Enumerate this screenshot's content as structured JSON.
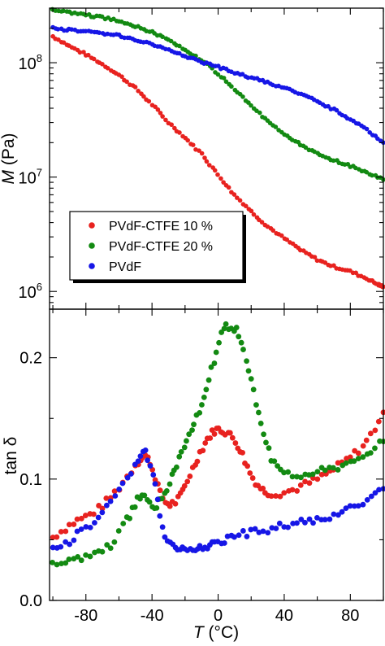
{
  "chart_data": [
    {
      "type": "scatter",
      "panel": "top",
      "ylabel": {
        "symbol": "M",
        "unit": " (Pa)"
      },
      "yscale": "log",
      "ylim": [
        700000,
        300000000
      ],
      "xlim": [
        -102,
        100
      ],
      "y_ticks": [
        {
          "value": 1000000,
          "base": "10",
          "exp": "6"
        },
        {
          "value": 10000000,
          "base": "10",
          "exp": "7"
        },
        {
          "value": 100000000,
          "base": "10",
          "exp": "8"
        }
      ],
      "legend": {
        "placement": "lower-left",
        "entries": [
          "PVdF-CTFE 10 %",
          "PVdF-CTFE 20 %",
          "PVdF"
        ]
      },
      "series": [
        {
          "name": "PVdF-CTFE 10 %",
          "color": "#e8221f",
          "x": [
            -100,
            -90,
            -80,
            -70,
            -60,
            -50,
            -40,
            -30,
            -20,
            -10,
            0,
            10,
            20,
            30,
            40,
            50,
            60,
            70,
            80,
            90,
            97,
            100
          ],
          "y": [
            170000000,
            140000000,
            118000000,
            97000000,
            78000000,
            60000000,
            43000000,
            30000000,
            22000000,
            16000000,
            10500000,
            7000000,
            5000000,
            3700000,
            2900000,
            2300000,
            1900000,
            1650000,
            1500000,
            1300000,
            1150000,
            1100000
          ]
        },
        {
          "name": "PVdF-CTFE 20 %",
          "color": "#138a12",
          "x": [
            -100,
            -90,
            -80,
            -70,
            -60,
            -50,
            -40,
            -30,
            -20,
            -10,
            0,
            10,
            20,
            30,
            40,
            50,
            60,
            70,
            80,
            90,
            100
          ],
          "y": [
            290000000,
            275000000,
            262000000,
            248000000,
            232000000,
            210000000,
            185000000,
            160000000,
            130000000,
            105000000,
            80000000,
            58000000,
            42000000,
            31000000,
            24000000,
            19000000,
            16000000,
            14000000,
            12500000,
            11000000,
            9500000
          ]
        },
        {
          "name": "PVdF",
          "color": "#1616e6",
          "x": [
            -100,
            -90,
            -80,
            -70,
            -60,
            -50,
            -40,
            -30,
            -20,
            -10,
            0,
            10,
            20,
            30,
            40,
            50,
            60,
            70,
            80,
            90,
            100
          ],
          "y": [
            200000000,
            193000000,
            188000000,
            182000000,
            172000000,
            160000000,
            145000000,
            130000000,
            115000000,
            102000000,
            92000000,
            82000000,
            74000000,
            67000000,
            60000000,
            53000000,
            46000000,
            39000000,
            32000000,
            26000000,
            20000000
          ]
        }
      ]
    },
    {
      "type": "scatter",
      "panel": "bottom",
      "ylabel": {
        "text": "tan δ"
      },
      "xlabel": {
        "symbol": "T",
        "unit": " (°C)"
      },
      "ylim": [
        0.0,
        0.24
      ],
      "xlim": [
        -102,
        100
      ],
      "x_ticks": [
        -80,
        -40,
        0,
        40,
        80
      ],
      "y_ticks": [
        0.0,
        0.1,
        0.2
      ],
      "series": [
        {
          "name": "PVdF-CTFE 10 %",
          "color": "#e8221f",
          "x": [
            -100,
            -95,
            -90,
            -85,
            -80,
            -75,
            -70,
            -65,
            -60,
            -55,
            -50,
            -47,
            -44,
            -41,
            -38,
            -35,
            -32,
            -29,
            -26,
            -23,
            -20,
            -17,
            -14,
            -11,
            -8,
            -5,
            -2,
            0,
            3,
            6,
            9,
            12,
            15,
            18,
            21,
            24,
            27,
            30,
            35,
            40,
            45,
            50,
            55,
            60,
            65,
            70,
            75,
            80,
            85,
            90,
            95,
            100
          ],
          "y": [
            0.052,
            0.057,
            0.062,
            0.066,
            0.069,
            0.073,
            0.078,
            0.085,
            0.093,
            0.102,
            0.112,
            0.117,
            0.119,
            0.114,
            0.102,
            0.088,
            0.081,
            0.079,
            0.081,
            0.086,
            0.094,
            0.104,
            0.113,
            0.122,
            0.13,
            0.136,
            0.14,
            0.141,
            0.14,
            0.138,
            0.134,
            0.128,
            0.12,
            0.11,
            0.101,
            0.095,
            0.091,
            0.089,
            0.088,
            0.089,
            0.091,
            0.094,
            0.097,
            0.1,
            0.104,
            0.108,
            0.113,
            0.118,
            0.124,
            0.131,
            0.142,
            0.155
          ]
        },
        {
          "name": "PVdF-CTFE 20 %",
          "color": "#138a12",
          "x": [
            -100,
            -95,
            -90,
            -85,
            -80,
            -75,
            -70,
            -65,
            -60,
            -55,
            -52,
            -49,
            -46,
            -43,
            -40,
            -37,
            -34,
            -31,
            -28,
            -25,
            -22,
            -19,
            -16,
            -13,
            -10,
            -7,
            -4,
            -1,
            2,
            5,
            8,
            11,
            14,
            17,
            20,
            23,
            26,
            29,
            32,
            36,
            40,
            45,
            50,
            55,
            60,
            65,
            70,
            75,
            80,
            85,
            90,
            95,
            100
          ],
          "y": [
            0.03,
            0.031,
            0.032,
            0.034,
            0.036,
            0.038,
            0.041,
            0.046,
            0.055,
            0.066,
            0.074,
            0.083,
            0.088,
            0.085,
            0.078,
            0.079,
            0.085,
            0.093,
            0.102,
            0.112,
            0.122,
            0.132,
            0.142,
            0.152,
            0.162,
            0.175,
            0.19,
            0.205,
            0.218,
            0.225,
            0.226,
            0.222,
            0.212,
            0.198,
            0.18,
            0.162,
            0.145,
            0.13,
            0.118,
            0.11,
            0.106,
            0.104,
            0.104,
            0.105,
            0.106,
            0.107,
            0.108,
            0.11,
            0.113,
            0.117,
            0.121,
            0.126,
            0.131
          ]
        },
        {
          "name": "PVdF",
          "color": "#1616e6",
          "x": [
            -100,
            -95,
            -90,
            -85,
            -80,
            -75,
            -70,
            -65,
            -60,
            -55,
            -50,
            -47,
            -44,
            -41,
            -38,
            -35,
            -32,
            -29,
            -26,
            -23,
            -20,
            -17,
            -14,
            -11,
            -8,
            -5,
            -2,
            2,
            6,
            10,
            15,
            20,
            25,
            30,
            35,
            40,
            45,
            50,
            55,
            60,
            65,
            70,
            75,
            80,
            85,
            90,
            95,
            100
          ],
          "y": [
            0.041,
            0.045,
            0.049,
            0.054,
            0.059,
            0.065,
            0.072,
            0.081,
            0.091,
            0.102,
            0.112,
            0.119,
            0.121,
            0.113,
            0.095,
            0.072,
            0.054,
            0.046,
            0.044,
            0.043,
            0.042,
            0.042,
            0.043,
            0.044,
            0.045,
            0.046,
            0.047,
            0.049,
            0.051,
            0.053,
            0.055,
            0.056,
            0.057,
            0.058,
            0.06,
            0.062,
            0.063,
            0.064,
            0.065,
            0.066,
            0.068,
            0.07,
            0.072,
            0.075,
            0.078,
            0.082,
            0.087,
            0.092
          ]
        }
      ]
    }
  ]
}
